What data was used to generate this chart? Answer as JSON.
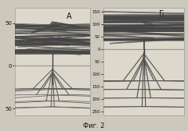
{
  "title": "Фиг. 2",
  "panel_A_label": "А",
  "panel_B_label": "Б",
  "bg_color": "#ccc8bc",
  "panel_bg": "#ddd8cc",
  "line_color": "#999999",
  "text_color": "#111111",
  "border_color": "#aaaaaa",
  "panel_A_ylim": [
    -58,
    68
  ],
  "panel_B_ylim": [
    -265,
    165
  ],
  "panel_A_yticks": [
    50,
    0,
    -50
  ],
  "panel_A_yticklabels": [
    "50",
    "0",
    "50"
  ],
  "panel_B_yticks": [
    150,
    100,
    50,
    0,
    -50,
    -100,
    -150,
    -200,
    -250
  ],
  "panel_B_yticklabels": [
    "150",
    "100",
    "50",
    "0",
    "50",
    "100",
    "150",
    "200",
    "250"
  ]
}
